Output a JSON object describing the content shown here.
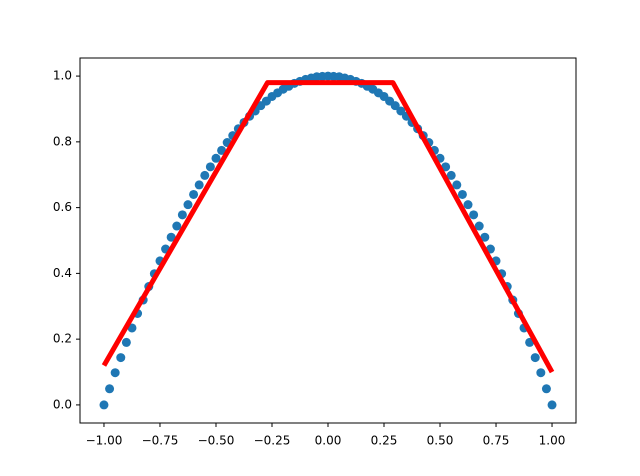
{
  "chart_data": {
    "type": "scatter",
    "xlim": [
      -1.107,
      1.107
    ],
    "ylim": [
      -0.055,
      1.055
    ],
    "xticks": [
      {
        "value": -1,
        "label": "−1.00"
      },
      {
        "value": -0.75,
        "label": "−0.75"
      },
      {
        "value": -0.5,
        "label": "−0.50"
      },
      {
        "value": -0.25,
        "label": "−0.25"
      },
      {
        "value": 0,
        "label": "0.00"
      },
      {
        "value": 0.25,
        "label": "0.25"
      },
      {
        "value": 0.5,
        "label": "0.50"
      },
      {
        "value": 0.75,
        "label": "0.75"
      },
      {
        "value": 1,
        "label": "1.00"
      }
    ],
    "yticks": [
      {
        "value": 0,
        "label": "0.0"
      },
      0.2,
      0.4,
      0.6,
      0.8,
      {
        "value": 1,
        "label": "1.0"
      }
    ],
    "series": [
      {
        "type": "scatter",
        "color": "#1f77b4",
        "x": [
          -1,
          -0.975,
          -0.95,
          -0.925,
          -0.9,
          -0.875,
          -0.85,
          -0.825,
          -0.8,
          -0.775,
          -0.75,
          -0.725,
          -0.7,
          -0.675,
          -0.65,
          -0.625,
          -0.6,
          -0.575,
          -0.55,
          -0.525,
          -0.5,
          -0.475,
          -0.45,
          -0.425,
          -0.4,
          -0.375,
          -0.35,
          -0.325,
          -0.3,
          -0.275,
          -0.25,
          -0.225,
          -0.2,
          -0.175,
          -0.15,
          -0.125,
          -0.1,
          -0.075,
          -0.05,
          -0.025,
          0,
          0.025,
          0.05,
          0.075,
          0.1,
          0.125,
          0.15,
          0.175,
          0.2,
          0.225,
          0.25,
          0.275,
          0.3,
          0.325,
          0.35,
          0.375,
          0.4,
          0.425,
          0.45,
          0.475,
          0.5,
          0.525,
          0.55,
          0.575,
          0.6,
          0.625,
          0.65,
          0.675,
          0.7,
          0.725,
          0.75,
          0.775,
          0.8,
          0.825,
          0.85,
          0.875,
          0.9,
          0.925,
          0.95,
          0.975,
          1
        ],
        "values": [
          0,
          0.049,
          0.098,
          0.144,
          0.19,
          0.234,
          0.278,
          0.319,
          0.36,
          0.399,
          0.438,
          0.474,
          0.51,
          0.544,
          0.578,
          0.609,
          0.64,
          0.669,
          0.698,
          0.724,
          0.75,
          0.774,
          0.798,
          0.819,
          0.84,
          0.859,
          0.878,
          0.894,
          0.91,
          0.924,
          0.938,
          0.949,
          0.96,
          0.969,
          0.978,
          0.984,
          0.99,
          0.994,
          0.998,
          0.999,
          1,
          0.999,
          0.998,
          0.994,
          0.99,
          0.984,
          0.978,
          0.969,
          0.96,
          0.949,
          0.938,
          0.924,
          0.91,
          0.894,
          0.878,
          0.859,
          0.84,
          0.819,
          0.798,
          0.774,
          0.75,
          0.724,
          0.698,
          0.669,
          0.64,
          0.609,
          0.578,
          0.544,
          0.51,
          0.474,
          0.438,
          0.399,
          0.36,
          0.319,
          0.278,
          0.234,
          0.19,
          0.144,
          0.098,
          0.049,
          0
        ]
      },
      {
        "type": "line",
        "color": "#ff0000",
        "x": [
          -1,
          -0.27,
          0.29,
          1
        ],
        "values": [
          0.12,
          0.98,
          0.98,
          0.1
        ]
      }
    ]
  }
}
